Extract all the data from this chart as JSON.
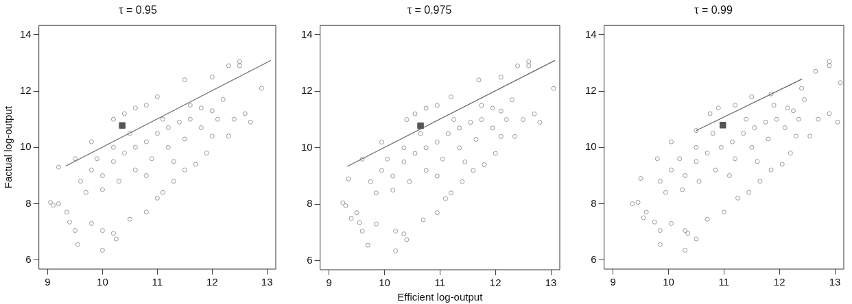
{
  "chart_data": [
    {
      "type": "scatter",
      "title": "τ = 0.95",
      "ylabel": "Factual log-output",
      "xlim": [
        8.84,
        13.16
      ],
      "ylim": [
        5.68,
        14.33
      ],
      "xticks": [
        9,
        10,
        11,
        12,
        13
      ],
      "yticks": [
        6,
        8,
        10,
        12,
        14
      ],
      "series": [
        {
          "type": "scatter",
          "marker": "circle",
          "color": "#999999",
          "x": [
            9.05,
            9.1,
            9.2,
            9.35,
            9.4,
            9.5,
            9.55,
            9.8,
            10.0,
            10.0,
            10.2,
            10.25,
            10.5,
            10.8,
            11.0,
            11.1,
            11.3,
            11.5,
            11.7,
            11.9,
            12.0,
            12.3,
            12.4,
            12.6,
            12.7,
            12.9,
            12.5,
            12.0,
            9.2,
            9.5,
            9.8,
            10.2,
            10.4,
            10.6,
            10.8,
            11.0,
            11.5,
            12.3,
            12.5,
            9.6,
            9.8,
            10.0,
            10.2,
            10.4,
            10.6,
            10.8,
            11.0,
            11.2,
            11.4,
            11.6,
            11.8,
            10.0,
            10.3,
            10.6,
            10.9,
            11.2,
            11.5,
            11.8,
            9.7,
            10.5,
            11.1,
            10.2,
            9.9,
            10.8,
            11.3,
            12.1,
            12.2,
            11.6,
            12.0
          ],
          "values": [
            8.05,
            7.95,
            8.0,
            7.7,
            7.35,
            7.05,
            6.55,
            7.3,
            6.35,
            7.05,
            6.95,
            6.75,
            7.45,
            7.7,
            8.2,
            8.4,
            8.8,
            9.2,
            9.4,
            9.8,
            10.4,
            10.4,
            11.0,
            11.2,
            10.9,
            12.1,
            12.9,
            12.5,
            9.3,
            9.6,
            10.2,
            11.0,
            11.2,
            11.4,
            11.5,
            11.8,
            12.4,
            12.9,
            13.05,
            8.8,
            9.2,
            9.0,
            9.5,
            9.8,
            10.0,
            10.2,
            10.5,
            10.7,
            10.9,
            11.0,
            11.4,
            8.5,
            8.8,
            9.2,
            9.6,
            10.0,
            10.3,
            10.7,
            8.4,
            10.5,
            11.0,
            10.0,
            9.6,
            9.0,
            9.5,
            11.0,
            11.7,
            11.5,
            11.3
          ]
        },
        {
          "type": "line",
          "marker": "none",
          "color": "#666666",
          "x": [
            9.33,
            13.07
          ],
          "values": [
            9.34,
            13.09
          ]
        },
        {
          "type": "scatter",
          "marker": "square",
          "color": "#555555",
          "x": [
            10.36
          ],
          "values": [
            10.78
          ]
        }
      ]
    },
    {
      "type": "scatter",
      "title": "τ = 0.975",
      "xlabel": "Efficient log-output",
      "xlim": [
        8.84,
        13.16
      ],
      "ylim": [
        5.68,
        14.33
      ],
      "xticks": [
        9,
        10,
        11,
        12,
        13
      ],
      "yticks": [
        6,
        8,
        10,
        12,
        14
      ],
      "series": [
        {
          "type": "scatter",
          "marker": "circle",
          "color": "#999999",
          "x": [
            9.25,
            9.3,
            9.4,
            9.5,
            9.55,
            9.6,
            9.7,
            9.85,
            10.2,
            10.2,
            10.35,
            10.4,
            10.7,
            10.95,
            11.1,
            11.2,
            11.4,
            11.6,
            11.8,
            12.0,
            12.1,
            12.35,
            12.5,
            12.7,
            12.8,
            13.05,
            12.6,
            12.1,
            9.35,
            9.6,
            9.95,
            10.4,
            10.55,
            10.75,
            10.95,
            11.2,
            11.7,
            12.4,
            12.6,
            9.75,
            9.95,
            10.15,
            10.35,
            10.55,
            10.75,
            10.95,
            11.15,
            11.35,
            11.55,
            11.75,
            11.95,
            10.15,
            10.45,
            10.75,
            11.05,
            11.35,
            11.65,
            11.95,
            9.85,
            10.65,
            11.25,
            10.35,
            10.05,
            10.95,
            11.45,
            12.2,
            12.3,
            11.75,
            12.1
          ],
          "values": [
            8.05,
            7.95,
            7.5,
            7.7,
            7.35,
            7.05,
            6.55,
            7.3,
            6.35,
            7.05,
            6.95,
            6.75,
            7.45,
            7.7,
            8.2,
            8.4,
            8.8,
            9.2,
            9.4,
            9.8,
            10.4,
            10.4,
            11.0,
            11.2,
            10.9,
            12.1,
            12.9,
            12.5,
            8.9,
            9.6,
            10.2,
            11.0,
            11.2,
            11.4,
            11.5,
            11.8,
            12.4,
            12.9,
            13.05,
            8.8,
            9.2,
            9.0,
            9.5,
            9.8,
            10.0,
            10.2,
            10.5,
            10.7,
            10.9,
            11.0,
            11.4,
            8.5,
            8.8,
            9.2,
            9.6,
            10.0,
            10.3,
            10.7,
            8.4,
            10.5,
            11.0,
            10.0,
            9.6,
            9.0,
            9.5,
            11.0,
            11.7,
            11.5,
            11.3
          ]
        },
        {
          "type": "line",
          "marker": "none",
          "color": "#666666",
          "x": [
            9.33,
            13.07
          ],
          "values": [
            9.34,
            13.09
          ]
        },
        {
          "type": "scatter",
          "marker": "square",
          "color": "#555555",
          "x": [
            10.65
          ],
          "values": [
            10.78
          ]
        }
      ]
    },
    {
      "type": "scatter",
      "title": "τ = 0.99",
      "xlim": [
        8.84,
        13.16
      ],
      "ylim": [
        5.68,
        14.33
      ],
      "xticks": [
        9,
        10,
        11,
        12,
        13
      ],
      "yticks": [
        6,
        8,
        10,
        12,
        14
      ],
      "series": [
        {
          "type": "scatter",
          "marker": "circle",
          "color": "#999999",
          "x": [
            9.35,
            9.45,
            9.55,
            9.6,
            9.75,
            9.85,
            9.85,
            10.05,
            10.3,
            10.3,
            10.35,
            10.5,
            10.7,
            11.0,
            11.25,
            11.45,
            11.65,
            11.85,
            12.05,
            12.2,
            12.3,
            12.55,
            12.7,
            12.9,
            13.05,
            13.1,
            12.9,
            12.4,
            9.5,
            9.8,
            10.05,
            10.5,
            10.75,
            10.9,
            11.2,
            11.5,
            11.85,
            12.65,
            12.9,
            9.85,
            10.05,
            10.3,
            10.5,
            10.7,
            10.95,
            11.15,
            11.35,
            11.55,
            11.75,
            11.95,
            12.15,
            10.25,
            10.55,
            10.85,
            11.2,
            11.5,
            11.8,
            12.1,
            9.95,
            10.8,
            11.4,
            10.5,
            10.2,
            11.1,
            11.6,
            12.35,
            12.45,
            11.9,
            12.25
          ],
          "values": [
            8.0,
            8.05,
            7.5,
            7.7,
            7.35,
            7.05,
            6.55,
            7.3,
            6.35,
            7.05,
            6.95,
            6.75,
            7.45,
            7.7,
            8.2,
            8.4,
            8.8,
            9.2,
            9.4,
            9.8,
            10.4,
            10.4,
            11.0,
            11.2,
            10.9,
            12.3,
            12.9,
            12.1,
            8.9,
            9.6,
            10.2,
            10.6,
            11.2,
            11.4,
            11.5,
            11.8,
            11.9,
            12.7,
            13.05,
            8.8,
            9.2,
            9.0,
            9.5,
            9.8,
            10.0,
            10.2,
            10.5,
            10.7,
            10.9,
            11.0,
            11.4,
            8.5,
            8.8,
            9.2,
            9.6,
            10.0,
            10.3,
            10.7,
            8.4,
            10.5,
            11.0,
            10.0,
            9.6,
            9.0,
            9.5,
            11.0,
            11.7,
            11.5,
            11.3
          ]
        },
        {
          "type": "line",
          "marker": "none",
          "color": "#666666",
          "x": [
            10.5,
            12.41
          ],
          "values": [
            10.6,
            12.43
          ]
        },
        {
          "type": "scatter",
          "marker": "square",
          "color": "#555555",
          "x": [
            10.98
          ],
          "values": [
            10.79
          ]
        }
      ]
    }
  ]
}
